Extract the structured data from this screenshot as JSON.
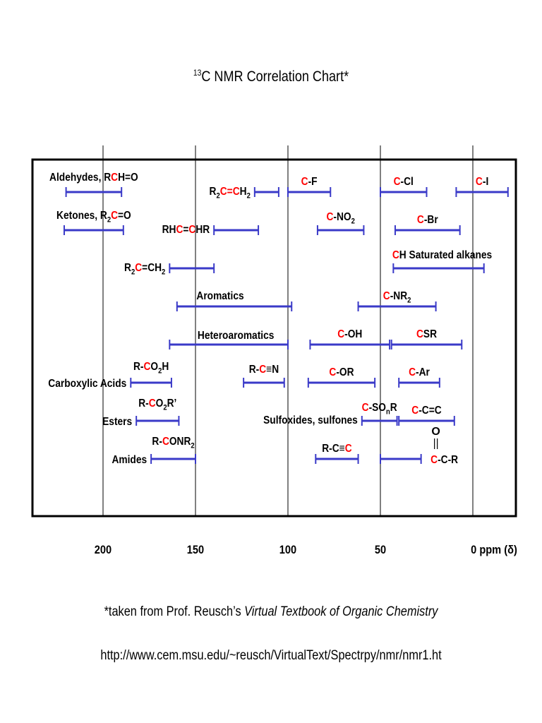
{
  "title_pre": "13",
  "title_main": "C NMR Correlation Chart*",
  "footnote": {
    "prefix": "*taken from Prof. Reusch’s ",
    "italic": "Virtual Textbook of Organic Chemistry"
  },
  "url": "http://www.cem.msu.edu/~reusch/VirtualText/Spectrpy/nmr/nmr1.ht",
  "colors": {
    "bar": "#3a3ac8",
    "accent": "#ff0000",
    "frame": "#000000",
    "grid": "#000000"
  },
  "chart_data": {
    "type": "range",
    "x_axis": {
      "range": [
        240,
        -23
      ],
      "reversed": true,
      "ticks": [
        {
          "value": 200,
          "label": "200"
        },
        {
          "value": 150,
          "label": "150"
        },
        {
          "value": 100,
          "label": "100"
        },
        {
          "value": 50,
          "label": "50"
        },
        {
          "value": 0,
          "label": "0 ppm (δ)"
        }
      ]
    },
    "grid": true,
    "groups": [
      {
        "name": "Aldehydes",
        "label": [
          {
            "t": "Aldehydes, R"
          },
          {
            "t": "C",
            "c": "red"
          },
          {
            "t": "H=O"
          }
        ],
        "range": [
          220,
          190
        ],
        "row": 1
      },
      {
        "name": "Ketones",
        "label": [
          {
            "t": "Ketones, R"
          },
          {
            "t": "2",
            "sub": true
          },
          {
            "t": "C",
            "c": "red"
          },
          {
            "t": "=O"
          }
        ],
        "range": [
          221,
          189
        ],
        "row": 2
      },
      {
        "name": "R2C=CH2 (CH2 carbon)",
        "label": [
          {
            "t": "R"
          },
          {
            "t": "2",
            "sub": true
          },
          {
            "t": "C=C",
            "c": "red"
          },
          {
            "t": "H"
          },
          {
            "t": "2",
            "sub": true
          }
        ],
        "range": [
          118,
          105
        ],
        "row": 1
      },
      {
        "name": "C-F",
        "label": [
          {
            "t": "C",
            "c": "red"
          },
          {
            "t": "-F"
          }
        ],
        "range": [
          100,
          77
        ],
        "row": 1
      },
      {
        "name": "C-Cl",
        "label": [
          {
            "t": "C",
            "c": "red"
          },
          {
            "t": "-Cl"
          }
        ],
        "range": [
          50,
          25
        ],
        "row": 1
      },
      {
        "name": "C-I",
        "label": [
          {
            "t": "C",
            "c": "red"
          },
          {
            "t": "-I"
          }
        ],
        "range": [
          9,
          -19
        ],
        "row": 1
      },
      {
        "name": "RHC=CHR",
        "label": [
          {
            "t": "RH"
          },
          {
            "t": "C",
            "c": "red"
          },
          {
            "t": "="
          },
          {
            "t": "C",
            "c": "red"
          },
          {
            "t": "HR"
          }
        ],
        "range": [
          140,
          116
        ],
        "row": 2
      },
      {
        "name": "C-NO2",
        "label": [
          {
            "t": "C",
            "c": "red"
          },
          {
            "t": "-NO"
          },
          {
            "t": "2",
            "sub": true
          }
        ],
        "range": [
          84,
          59
        ],
        "row": 2
      },
      {
        "name": "C-Br",
        "label": [
          {
            "t": "C",
            "c": "red"
          },
          {
            "t": "-Br"
          }
        ],
        "range": [
          42,
          7
        ],
        "row": 2
      },
      {
        "name": "R2C=CH2 (R2C carbon)",
        "label": [
          {
            "t": "R"
          },
          {
            "t": "2",
            "sub": true
          },
          {
            "t": "C",
            "c": "red"
          },
          {
            "t": "=CH"
          },
          {
            "t": "2",
            "sub": true
          }
        ],
        "range": [
          164,
          140
        ],
        "row": 3
      },
      {
        "name": "CH Saturated alkanes",
        "label": [
          {
            "t": "C",
            "c": "red"
          },
          {
            "t": "H Saturated alkanes"
          }
        ],
        "range": [
          43,
          -6
        ],
        "row": 3
      },
      {
        "name": "Aromatics",
        "label": [
          {
            "t": "Aromatics"
          }
        ],
        "range": [
          160,
          98
        ],
        "row": 4
      },
      {
        "name": "C-NR2",
        "label": [
          {
            "t": "C",
            "c": "red"
          },
          {
            "t": "-NR"
          },
          {
            "t": "2",
            "sub": true
          }
        ],
        "range": [
          62,
          20
        ],
        "row": 4
      },
      {
        "name": "Heteroaromatics",
        "label": [
          {
            "t": "Heteroaromatics"
          }
        ],
        "range": [
          164,
          100
        ],
        "row": 5
      },
      {
        "name": "C-OH",
        "label": [
          {
            "t": "C",
            "c": "red"
          },
          {
            "t": "-OH"
          }
        ],
        "range": [
          88,
          45
        ],
        "row": 5
      },
      {
        "name": "CSR",
        "label": [
          {
            "t": "C",
            "c": "red"
          },
          {
            "t": "SR"
          }
        ],
        "range": [
          44,
          6
        ],
        "row": 5
      },
      {
        "name": "Carboxylic Acids",
        "label": [
          {
            "t": "R-"
          },
          {
            "t": "C",
            "c": "red"
          },
          {
            "t": "O"
          },
          {
            "t": "2",
            "sub": true
          },
          {
            "t": "H"
          }
        ],
        "side_label": "Carboxylic Acids",
        "range": [
          185,
          163
        ],
        "row": 6
      },
      {
        "name": "R-C≡N",
        "label": [
          {
            "t": "R-"
          },
          {
            "t": "C",
            "c": "red"
          },
          {
            "t": "≡N"
          }
        ],
        "range": [
          124,
          102
        ],
        "row": 6
      },
      {
        "name": "C-OR",
        "label": [
          {
            "t": "C",
            "c": "red"
          },
          {
            "t": "-OR"
          }
        ],
        "range": [
          89,
          53
        ],
        "row": 6
      },
      {
        "name": "C-Ar",
        "label": [
          {
            "t": "C",
            "c": "red"
          },
          {
            "t": "-Ar"
          }
        ],
        "range": [
          40,
          18
        ],
        "row": 6
      },
      {
        "name": "Esters",
        "label": [
          {
            "t": "R-"
          },
          {
            "t": "C",
            "c": "red"
          },
          {
            "t": "O"
          },
          {
            "t": "2",
            "sub": true
          },
          {
            "t": "R’"
          }
        ],
        "side_label": "Esters",
        "range": [
          182,
          159
        ],
        "row": 7
      },
      {
        "name": "Sulfoxides, sulfones",
        "label": [
          {
            "t": "C",
            "c": "red"
          },
          {
            "t": "-SO"
          },
          {
            "t": "n",
            "sub": true
          },
          {
            "t": "R"
          }
        ],
        "side_label": "Sulfoxides, sulfones",
        "range": [
          60,
          41
        ],
        "row": 7
      },
      {
        "name": "C-C=C",
        "label": [
          {
            "t": "C",
            "c": "red"
          },
          {
            "t": "-C=C"
          }
        ],
        "range": [
          40,
          10
        ],
        "row": 7
      },
      {
        "name": "Amides",
        "label": [
          {
            "t": "R-"
          },
          {
            "t": "C",
            "c": "red"
          },
          {
            "t": "ONR"
          },
          {
            "t": "2",
            "sub": true
          }
        ],
        "side_label": "Amides",
        "range": [
          174,
          150
        ],
        "row": 8
      },
      {
        "name": "R-C≡C",
        "label": [
          {
            "t": "R-C≡"
          },
          {
            "t": "C",
            "c": "red"
          }
        ],
        "range": [
          85,
          62
        ],
        "row": 8
      },
      {
        "name": "C-C(=O)-R",
        "label": [
          {
            "t": "C",
            "c": "red"
          },
          {
            "t": "-C-R"
          }
        ],
        "label_top": "O",
        "range": [
          50,
          28
        ],
        "row": 8
      }
    ]
  }
}
